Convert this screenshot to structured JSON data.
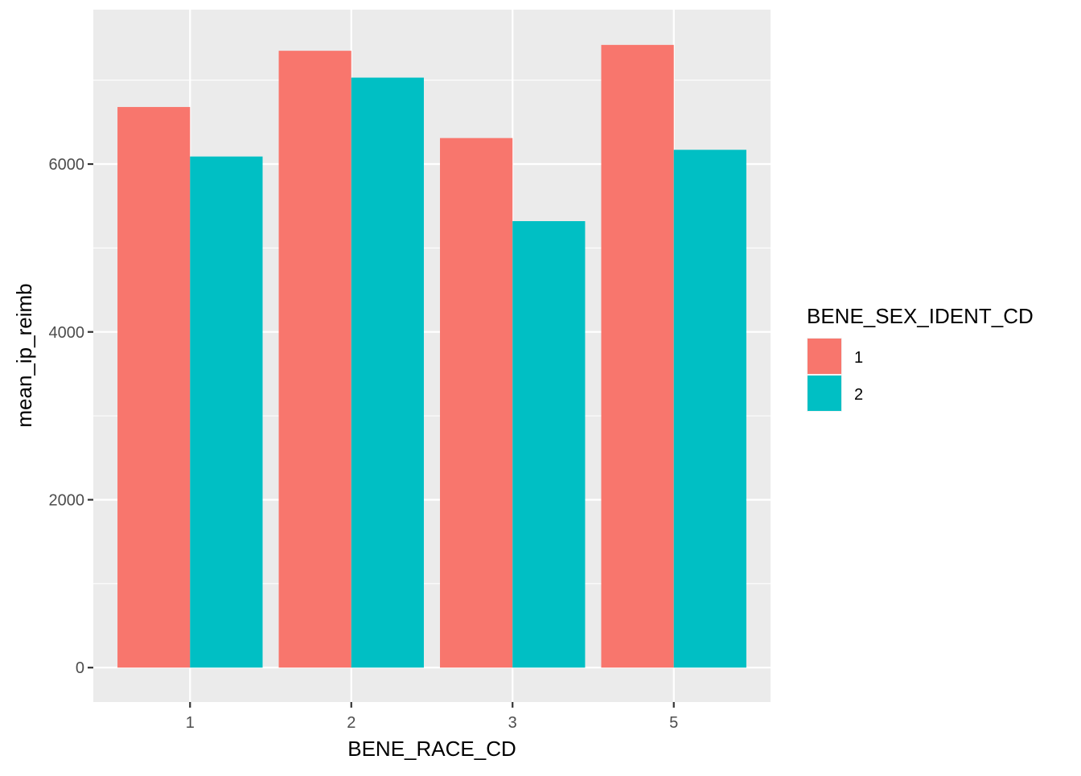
{
  "chart_data": {
    "type": "bar",
    "title": "",
    "xlabel": "BENE_RACE_CD",
    "ylabel": "mean_ip_reimb",
    "categories": [
      "1",
      "2",
      "3",
      "5"
    ],
    "series": [
      {
        "name": "1",
        "color": "#F8766D",
        "values": [
          6680,
          7350,
          6310,
          7420
        ]
      },
      {
        "name": "2",
        "color": "#00BFC4",
        "values": [
          6090,
          7030,
          5320,
          6170
        ]
      }
    ],
    "ylim": [
      -410,
      7840
    ],
    "yticks": [
      0,
      2000,
      4000,
      6000
    ],
    "ytick_labels": [
      "0",
      "2000",
      "4000",
      "6000"
    ],
    "legend": {
      "title": "BENE_SEX_IDENT_CD",
      "position": "right",
      "entries": [
        "1",
        "2"
      ]
    },
    "grid": true,
    "panel_background": "#EBEBEB",
    "grid_color": "#FFFFFF",
    "text_color": "#4D4D4D",
    "title_color": "#000000"
  }
}
